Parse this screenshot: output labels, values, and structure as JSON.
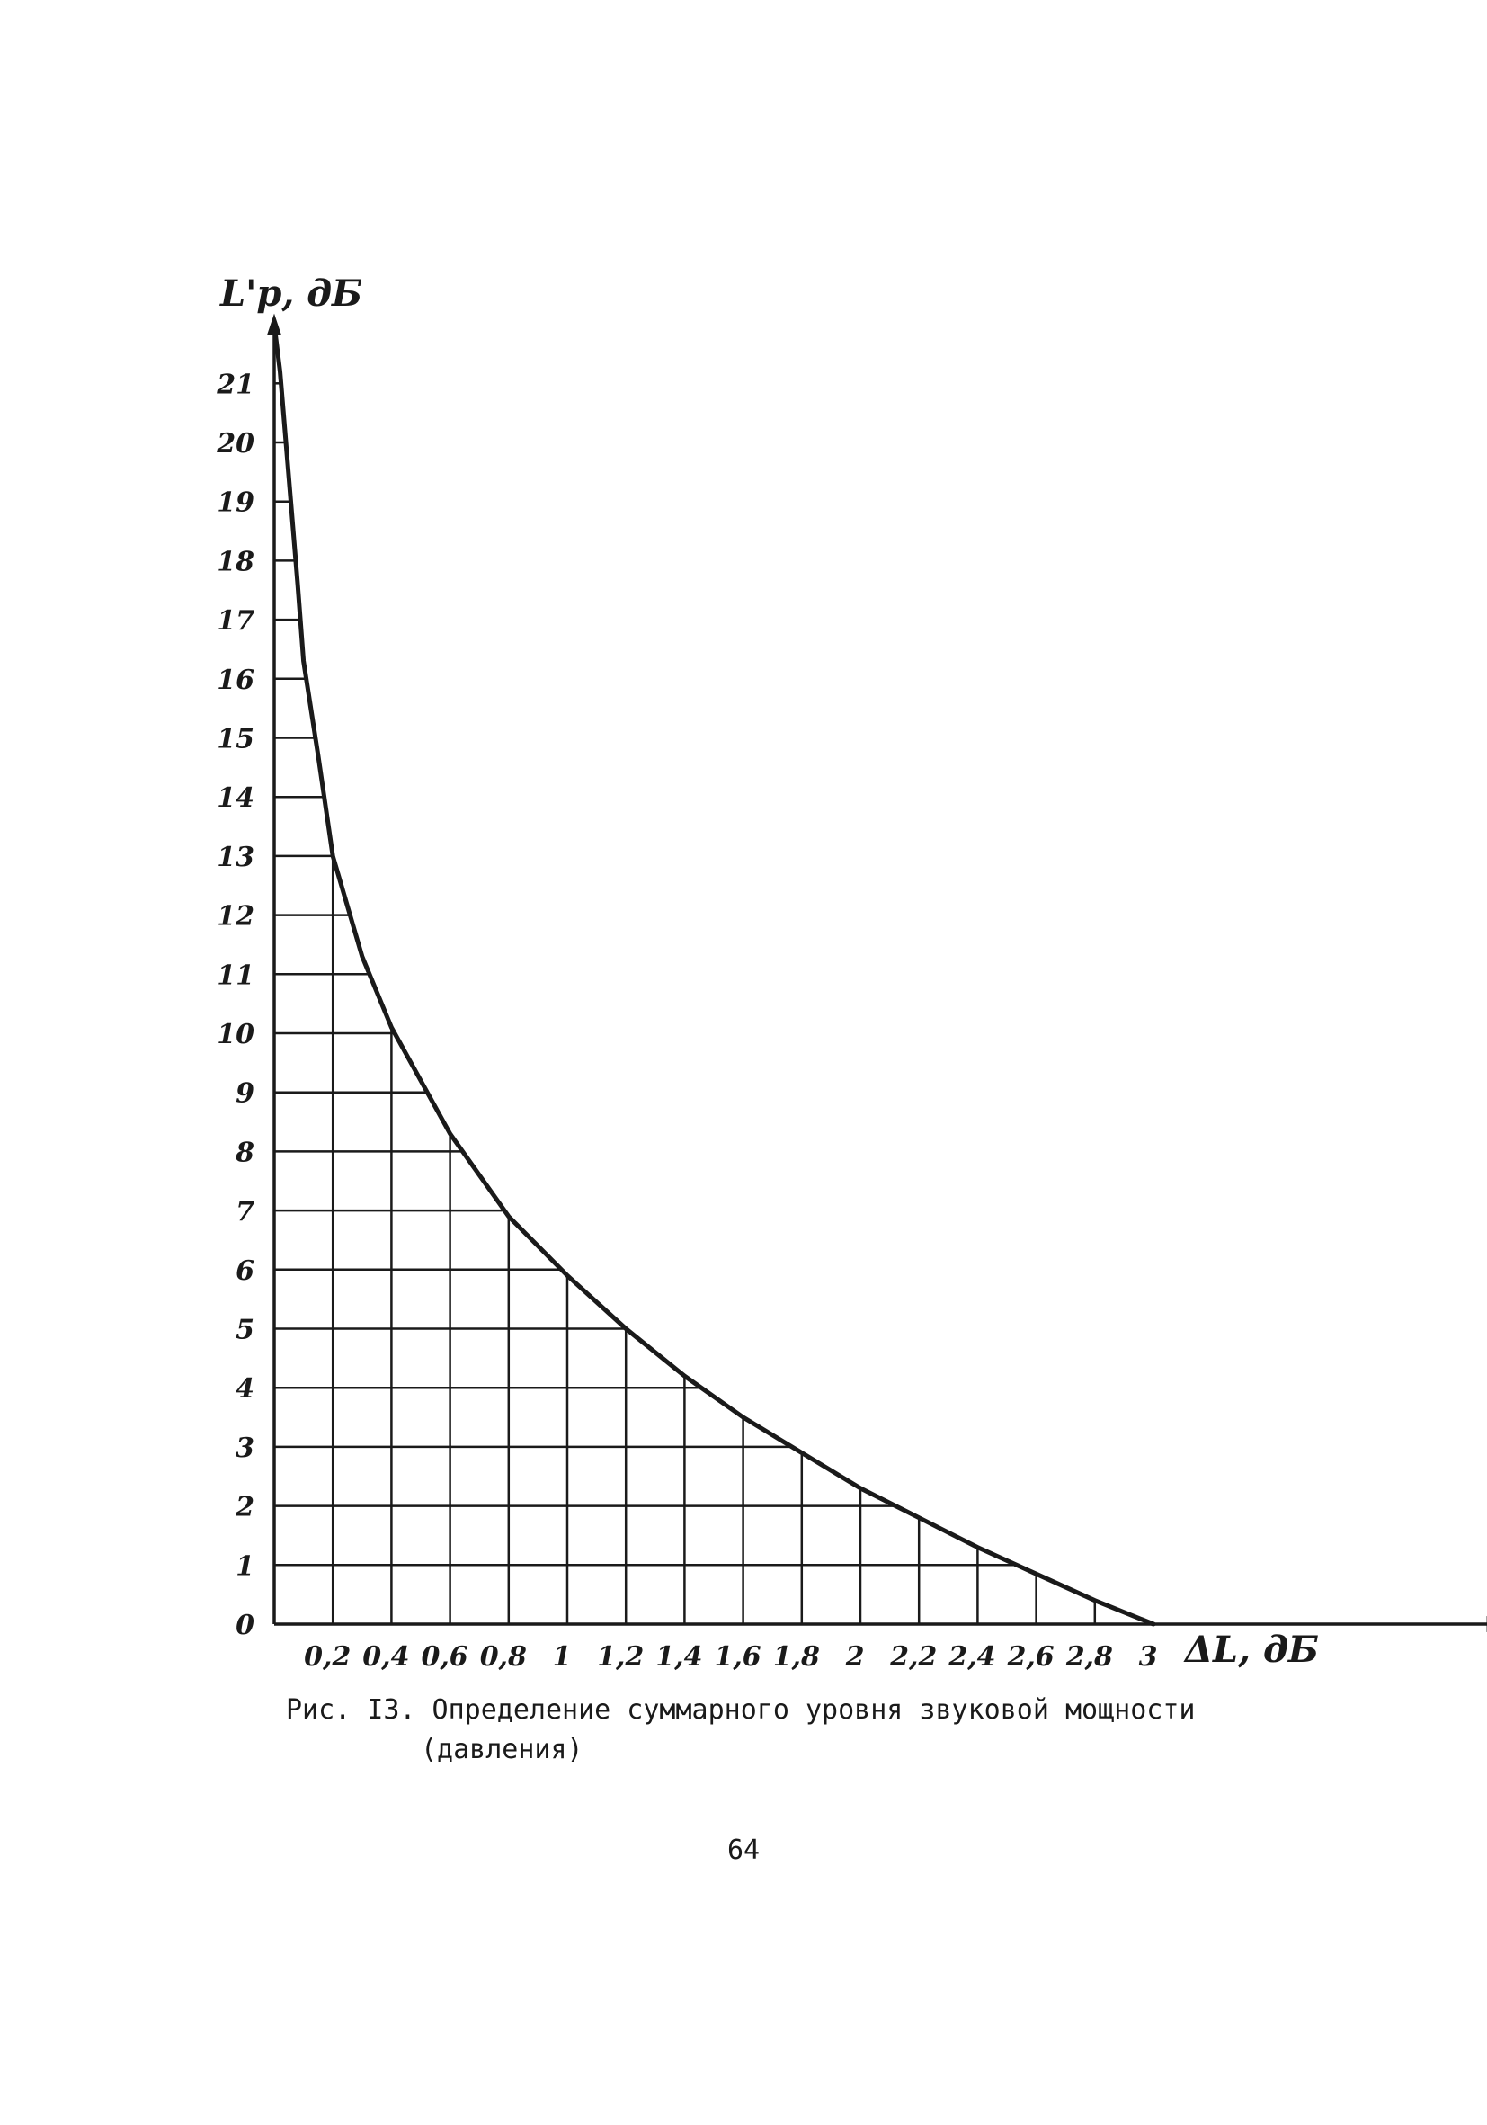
{
  "chart_data": {
    "type": "line",
    "ylabel": "L'p, дБ",
    "xlabel": "ΔL, дБ",
    "xlim": [
      0,
      3.1
    ],
    "ylim": [
      0,
      22
    ],
    "x_ticks": [
      "0,2",
      "0,4",
      "0,6",
      "0,8",
      "1",
      "1,2",
      "1,4",
      "1,6",
      "1,8",
      "2",
      "2,2",
      "2,4",
      "2,6",
      "2,8",
      "3"
    ],
    "x_tick_values": [
      0.2,
      0.4,
      0.6,
      0.8,
      1,
      1.2,
      1.4,
      1.6,
      1.8,
      2,
      2.2,
      2.4,
      2.6,
      2.8,
      3
    ],
    "y_ticks": [
      "0",
      "1",
      "2",
      "3",
      "4",
      "5",
      "6",
      "7",
      "8",
      "9",
      "10",
      "11",
      "12",
      "13",
      "14",
      "15",
      "16",
      "17",
      "18",
      "19",
      "20",
      "21"
    ],
    "y_tick_values": [
      0,
      1,
      2,
      3,
      4,
      5,
      6,
      7,
      8,
      9,
      10,
      11,
      12,
      13,
      14,
      15,
      16,
      17,
      18,
      19,
      20,
      21
    ],
    "grid": true,
    "series": [
      {
        "x": [
          0.0,
          0.02,
          0.05,
          0.08,
          0.1,
          0.15,
          0.2,
          0.3,
          0.4,
          0.5,
          0.6,
          0.7,
          0.8,
          0.9,
          1.0,
          1.2,
          1.4,
          1.6,
          1.8,
          2.0,
          2.2,
          2.4,
          2.6,
          2.8,
          3.0
        ],
        "y": [
          22.0,
          21.2,
          19.4,
          17.6,
          16.3,
          14.7,
          13.0,
          11.3,
          10.1,
          9.2,
          8.3,
          7.6,
          6.9,
          6.4,
          5.9,
          5.0,
          4.2,
          3.5,
          2.9,
          2.3,
          1.8,
          1.3,
          0.85,
          0.4,
          0.0
        ]
      }
    ]
  },
  "caption": {
    "line1": "Рис. I3. Определение суммарного уровня звуковой мощности",
    "line2": "(давления)"
  },
  "page_number": "64"
}
